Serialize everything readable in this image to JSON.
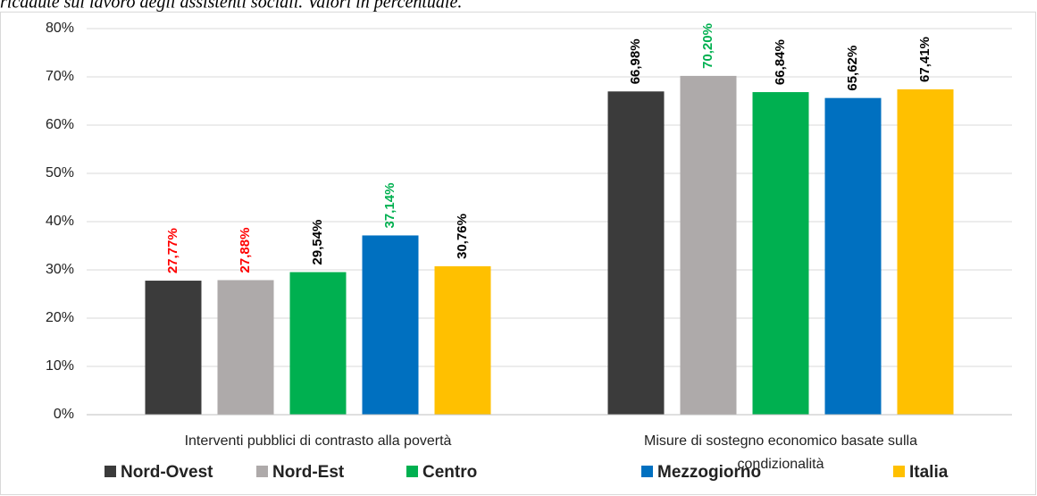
{
  "chart_data": {
    "type": "bar",
    "subtitle": "ricadute sul lavoro degli assistenti sociali. Valori in percentuale.",
    "categories": [
      "Interventi pubblici di contrasto alla povertà",
      "Misure di sostegno economico basate sulla condizionalità"
    ],
    "series": [
      {
        "name": "Nord-Ovest",
        "color": "#3b3b3b",
        "values": [
          27.77,
          66.98
        ],
        "value_labels": [
          "27,77%",
          "66,98%"
        ],
        "label_colors": [
          "#ff0000",
          "#000000"
        ]
      },
      {
        "name": "Nord-Est",
        "color": "#aeaaaa",
        "values": [
          27.88,
          70.2
        ],
        "value_labels": [
          "27,88%",
          "70,20%"
        ],
        "label_colors": [
          "#ff0000",
          "#00b050"
        ]
      },
      {
        "name": "Centro",
        "color": "#00b050",
        "values": [
          29.54,
          66.84
        ],
        "value_labels": [
          "29,54%",
          "66,84%"
        ],
        "label_colors": [
          "#000000",
          "#000000"
        ]
      },
      {
        "name": "Mezzogiorno",
        "color": "#0070c0",
        "values": [
          37.14,
          65.62
        ],
        "value_labels": [
          "37,14%",
          "65,62%"
        ],
        "label_colors": [
          "#00b050",
          "#000000"
        ]
      },
      {
        "name": "Italia",
        "color": "#ffc000",
        "values": [
          30.76,
          67.41
        ],
        "value_labels": [
          "30,76%",
          "67,41%"
        ],
        "label_colors": [
          "#000000",
          "#000000"
        ]
      }
    ],
    "ylim": [
      0,
      80
    ],
    "yticks": [
      {
        "value": 0,
        "label": "0%"
      },
      {
        "value": 10,
        "label": "10%"
      },
      {
        "value": 20,
        "label": "20%"
      },
      {
        "value": 30,
        "label": "30%"
      },
      {
        "value": 40,
        "label": "40%"
      },
      {
        "value": 50,
        "label": "50%"
      },
      {
        "value": 60,
        "label": "60%"
      },
      {
        "value": 70,
        "label": "70%"
      },
      {
        "value": 80,
        "label": "80%"
      }
    ],
    "grid": true,
    "legend": "bottom"
  }
}
